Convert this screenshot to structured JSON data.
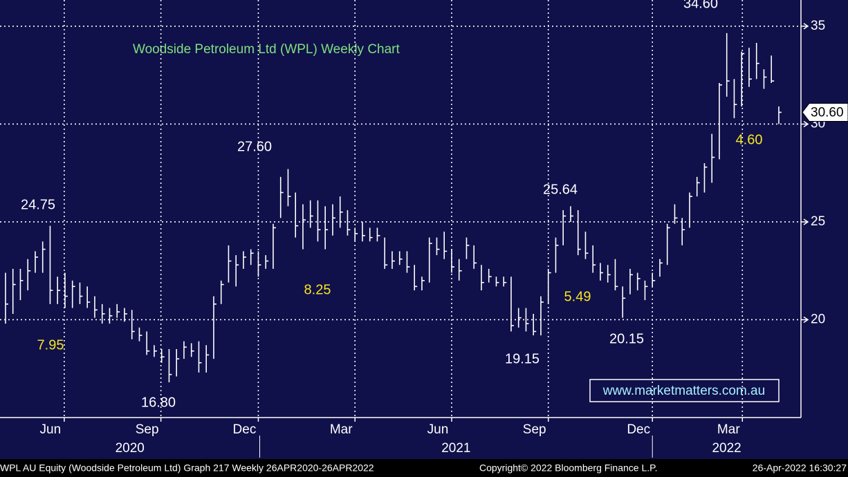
{
  "chart_data": {
    "type": "hlc",
    "title": "Woodside Petroleum Ltd (WPL) Weekly Chart",
    "color": "#ffffff",
    "grid": true,
    "ylim": [
      15.0,
      36.34
    ],
    "yticks": [
      20,
      25,
      30,
      35
    ],
    "xlim": [
      -0.74,
      106.98
    ],
    "xticks": [
      {
        "value": 7.9,
        "label": "Jun"
      },
      {
        "value": 20.9,
        "label": "Sep"
      },
      {
        "value": 34.0,
        "label": "Dec"
      },
      {
        "value": 47.0,
        "label": "Mar"
      },
      {
        "value": 60.0,
        "label": "Jun"
      },
      {
        "value": 73.0,
        "label": "Sep"
      },
      {
        "value": 87.0,
        "label": "Dec"
      },
      {
        "value": 99.1,
        "label": "Mar"
      }
    ],
    "years": [
      "2020",
      "2021",
      "2022"
    ],
    "high": [
      22.4,
      22.6,
      22.6,
      23.1,
      23.5,
      24.0,
      24.8,
      22.2,
      22.4,
      22.0,
      21.9,
      21.7,
      21.2,
      20.8,
      20.6,
      20.8,
      20.6,
      20.5,
      19.6,
      19.4,
      18.7,
      18.5,
      18.5,
      18.5,
      18.9,
      18.8,
      18.9,
      18.7,
      21.2,
      22.0,
      23.8,
      23.3,
      23.5,
      23.6,
      23.5,
      23.3,
      24.9,
      27.3,
      27.7,
      26.5,
      25.9,
      26.1,
      26.1,
      25.8,
      25.9,
      26.3,
      25.6,
      24.7,
      25.0,
      24.7,
      24.7,
      24.2,
      23.5,
      23.5,
      23.5,
      22.8,
      22.2,
      24.2,
      24.2,
      24.5,
      23.6,
      23.1,
      24.2,
      23.8,
      22.8,
      22.6,
      22.2,
      22.2,
      22.2,
      20.6,
      20.6,
      20.3,
      21.2,
      22.6,
      24.2,
      25.6,
      25.8,
      25.6,
      24.5,
      23.8,
      22.9,
      22.8,
      23.1,
      21.7,
      22.6,
      22.4,
      22.0,
      22.4,
      23.1,
      24.9,
      25.9,
      25.2,
      26.5,
      27.3,
      28.0,
      29.5,
      32.1,
      34.65,
      32.3,
      33.7,
      33.9,
      34.15,
      32.8,
      33.5,
      30.9
    ],
    "low": [
      19.8,
      20.3,
      21.0,
      21.5,
      22.4,
      22.4,
      20.8,
      20.8,
      20.6,
      20.6,
      20.8,
      20.6,
      20.1,
      19.8,
      19.8,
      20.1,
      19.9,
      19.0,
      18.9,
      18.2,
      18.1,
      17.8,
      16.8,
      17.1,
      18.0,
      18.1,
      17.3,
      17.3,
      18.0,
      20.8,
      21.9,
      21.7,
      22.6,
      22.8,
      22.2,
      22.6,
      22.6,
      25.2,
      25.8,
      24.2,
      23.6,
      24.7,
      24.0,
      23.6,
      24.3,
      24.7,
      24.3,
      24.0,
      24.0,
      24.0,
      24.0,
      22.6,
      22.6,
      22.8,
      22.4,
      21.5,
      21.5,
      21.9,
      23.3,
      23.1,
      22.4,
      22.0,
      23.1,
      22.6,
      21.5,
      21.9,
      21.7,
      21.7,
      19.4,
      19.6,
      19.4,
      19.2,
      19.2,
      20.8,
      22.4,
      23.8,
      25.0,
      23.3,
      23.1,
      22.4,
      22.0,
      21.9,
      21.5,
      20.1,
      21.3,
      21.5,
      21.0,
      21.7,
      22.2,
      22.8,
      24.9,
      23.8,
      24.7,
      26.3,
      26.5,
      27.0,
      28.2,
      31.4,
      30.3,
      30.9,
      31.9,
      32.3,
      31.8,
      32.1,
      30.0
    ],
    "close": [
      20.8,
      21.8,
      22.0,
      22.5,
      23.2,
      23.6,
      21.5,
      21.5,
      21.2,
      21.7,
      21.2,
      20.9,
      20.5,
      20.3,
      20.2,
      20.4,
      20.3,
      19.4,
      19.2,
      18.4,
      18.4,
      18.1,
      17.2,
      18.0,
      18.6,
      18.4,
      17.8,
      18.2,
      20.8,
      21.8,
      23.0,
      22.8,
      23.2,
      23.4,
      22.8,
      23.0,
      24.7,
      26.5,
      26.3,
      24.8,
      25.1,
      25.3,
      24.6,
      24.6,
      25.2,
      25.5,
      24.6,
      24.4,
      24.3,
      24.2,
      24.3,
      22.8,
      23.0,
      23.1,
      22.7,
      21.7,
      22.0,
      23.9,
      23.6,
      23.5,
      22.7,
      22.5,
      23.8,
      22.9,
      21.9,
      22.2,
      21.9,
      21.9,
      19.7,
      20.1,
      19.8,
      19.4,
      20.9,
      22.4,
      23.8,
      25.3,
      25.3,
      23.6,
      23.4,
      22.8,
      22.4,
      22.3,
      21.7,
      21.1,
      22.3,
      22.1,
      21.7,
      22.0,
      22.9,
      24.7,
      25.2,
      24.6,
      26.3,
      27.0,
      27.8,
      28.3,
      32.0,
      32.2,
      31.0,
      33.6,
      32.3,
      33.1,
      32.4,
      32.2,
      30.6
    ],
    "price_labels": [
      "24.75",
      "27.60",
      "25.64",
      "34.60",
      "16.80",
      "19.15",
      "20.15"
    ],
    "move_labels": [
      "7.95",
      "8.25",
      "5.49",
      "4.60"
    ],
    "last_price_label": "30.60",
    "watermark": "www.marketmatters.com.au",
    "footer": {
      "left": "WPL AU Equity (Woodside Petroleum Ltd) Graph 217  Weekly 26APR2020-26APR2022",
      "center": "Copyright© 2022 Bloomberg Finance L.P.",
      "right": "26-Apr-2022 16:30:27"
    }
  }
}
